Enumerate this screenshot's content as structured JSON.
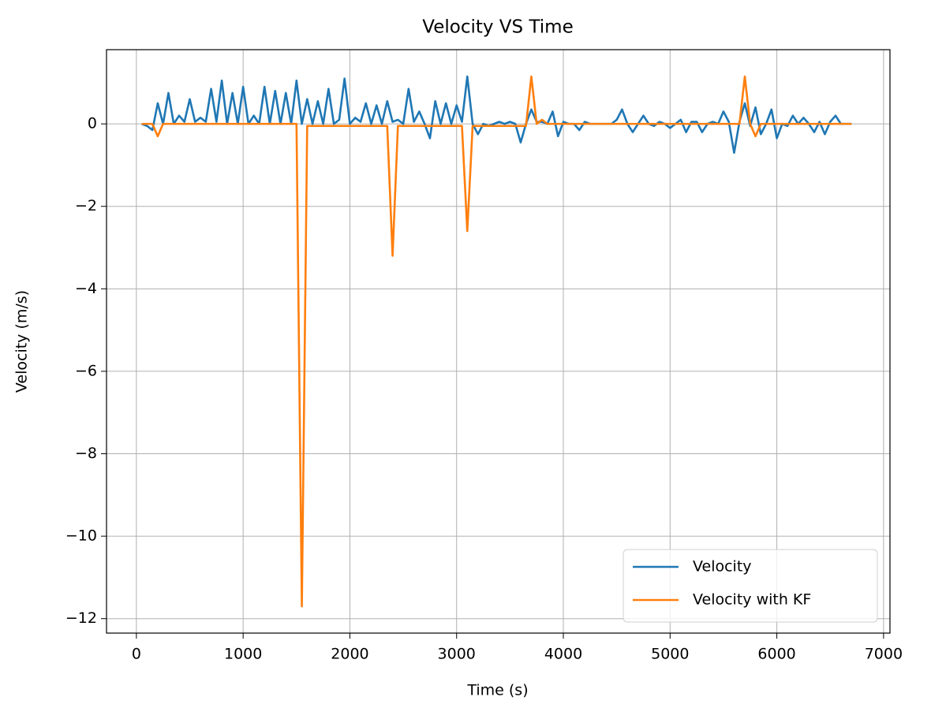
{
  "chart_data": {
    "type": "line",
    "title": "Velocity VS Time",
    "x_label": "Time (s)",
    "y_label": "Velocity (m/s)",
    "x": [
      50,
      100,
      150,
      200,
      250,
      300,
      350,
      400,
      450,
      500,
      550,
      600,
      650,
      700,
      750,
      800,
      850,
      900,
      950,
      1000,
      1050,
      1100,
      1150,
      1200,
      1250,
      1300,
      1350,
      1400,
      1450,
      1500,
      1550,
      1600,
      1650,
      1700,
      1750,
      1800,
      1850,
      1900,
      1950,
      2000,
      2050,
      2100,
      2150,
      2200,
      2250,
      2300,
      2350,
      2400,
      2450,
      2500,
      2550,
      2600,
      2650,
      2700,
      2750,
      2800,
      2850,
      2900,
      2950,
      3000,
      3050,
      3100,
      3150,
      3200,
      3250,
      3300,
      3350,
      3400,
      3450,
      3500,
      3550,
      3600,
      3650,
      3700,
      3750,
      3800,
      3850,
      3900,
      3950,
      4000,
      4050,
      4100,
      4150,
      4200,
      4250,
      4300,
      4350,
      4400,
      4450,
      4500,
      4550,
      4600,
      4650,
      4700,
      4750,
      4800,
      4850,
      4900,
      4950,
      5000,
      5050,
      5100,
      5150,
      5200,
      5250,
      5300,
      5350,
      5400,
      5450,
      5500,
      5550,
      5600,
      5650,
      5700,
      5750,
      5800,
      5850,
      5900,
      5950,
      6000,
      6050,
      6100,
      6150,
      6200,
      6250,
      6300,
      6350,
      6400,
      6450,
      6500,
      6550,
      6600,
      6650,
      6700
    ],
    "series": [
      {
        "name": "Velocity",
        "color": "#1f77b4",
        "values": [
          0,
          -0.05,
          -0.15,
          0.5,
          0,
          0.75,
          0,
          0.2,
          0.05,
          0.6,
          0.05,
          0.15,
          0.05,
          0.85,
          0.05,
          1.05,
          0,
          0.75,
          0,
          0.9,
          0,
          0.2,
          0,
          0.9,
          0,
          0.8,
          0,
          0.75,
          0,
          1.05,
          0,
          0.6,
          0,
          0.55,
          0,
          0.85,
          0,
          0.1,
          1.1,
          0,
          0.15,
          0.05,
          0.5,
          0,
          0.45,
          0,
          0.55,
          0.05,
          0.1,
          0,
          0.85,
          0.05,
          0.3,
          0,
          -0.35,
          0.55,
          0,
          0.5,
          0,
          0.45,
          0.05,
          1.15,
          0,
          -0.25,
          0,
          -0.05,
          0,
          0.05,
          0,
          0.05,
          0,
          -0.45,
          0,
          0.35,
          0.05,
          0.05,
          0,
          0.3,
          -0.3,
          0.05,
          0,
          0,
          -0.15,
          0.05,
          0,
          0,
          0,
          0,
          0,
          0.1,
          0.35,
          0,
          -0.2,
          0,
          0.2,
          0,
          -0.05,
          0.05,
          0,
          -0.1,
          0,
          0.1,
          -0.2,
          0.05,
          0.05,
          -0.2,
          0,
          0.05,
          0,
          0.3,
          0.05,
          -0.7,
          0.05,
          0.5,
          -0.05,
          0.4,
          -0.25,
          0,
          0.35,
          -0.35,
          0,
          -0.05,
          0.2,
          0,
          0.15,
          0,
          -0.2,
          0.05,
          -0.25,
          0.05,
          0.2,
          0,
          0,
          0
        ]
      },
      {
        "name": "Velocity with KF",
        "color": "#ff7f0e",
        "values": [
          0,
          0,
          0,
          -0.3,
          0,
          0,
          0,
          0,
          0,
          0,
          0,
          0,
          0,
          0,
          0,
          0,
          0,
          0,
          0,
          0,
          0,
          0,
          0,
          0,
          0,
          0,
          0,
          0,
          0,
          0,
          -11.7,
          -0.05,
          -0.05,
          -0.05,
          -0.05,
          -0.05,
          -0.05,
          -0.05,
          -0.05,
          -0.05,
          -0.05,
          -0.05,
          -0.05,
          -0.05,
          -0.05,
          -0.05,
          -0.05,
          -3.2,
          -0.05,
          -0.05,
          -0.05,
          -0.05,
          -0.05,
          -0.05,
          -0.05,
          -0.05,
          -0.05,
          -0.05,
          -0.05,
          -0.05,
          -0.05,
          -2.6,
          -0.05,
          -0.05,
          -0.05,
          -0.05,
          -0.05,
          -0.05,
          -0.05,
          -0.05,
          -0.05,
          -0.05,
          -0.05,
          1.15,
          0,
          0.1,
          0,
          0,
          0,
          0,
          0,
          0,
          0,
          0,
          0,
          0,
          0,
          0,
          0,
          0,
          0,
          0,
          0,
          0,
          0,
          0,
          0,
          0,
          0,
          0,
          0,
          0,
          0,
          0,
          0,
          0,
          0,
          0,
          0,
          0,
          0,
          0,
          0,
          1.15,
          0,
          -0.3,
          0,
          0,
          0,
          0,
          0,
          0,
          0,
          0,
          0,
          0,
          0,
          0,
          0,
          0,
          0,
          0,
          0,
          0
        ]
      }
    ],
    "xlim": [
      -280,
      7060
    ],
    "ylim": [
      -12.35,
      1.8
    ],
    "xticks": [
      0,
      1000,
      2000,
      3000,
      4000,
      5000,
      6000,
      7000
    ],
    "yticks": [
      {
        "value": -12,
        "label": "−12"
      },
      {
        "value": -10,
        "label": "−10"
      },
      {
        "value": -8,
        "label": "−8"
      },
      {
        "value": -6,
        "label": "−6"
      },
      {
        "value": -4,
        "label": "−4"
      },
      {
        "value": -2,
        "label": "−2"
      },
      0
    ],
    "grid": true,
    "legend": "lower right"
  }
}
